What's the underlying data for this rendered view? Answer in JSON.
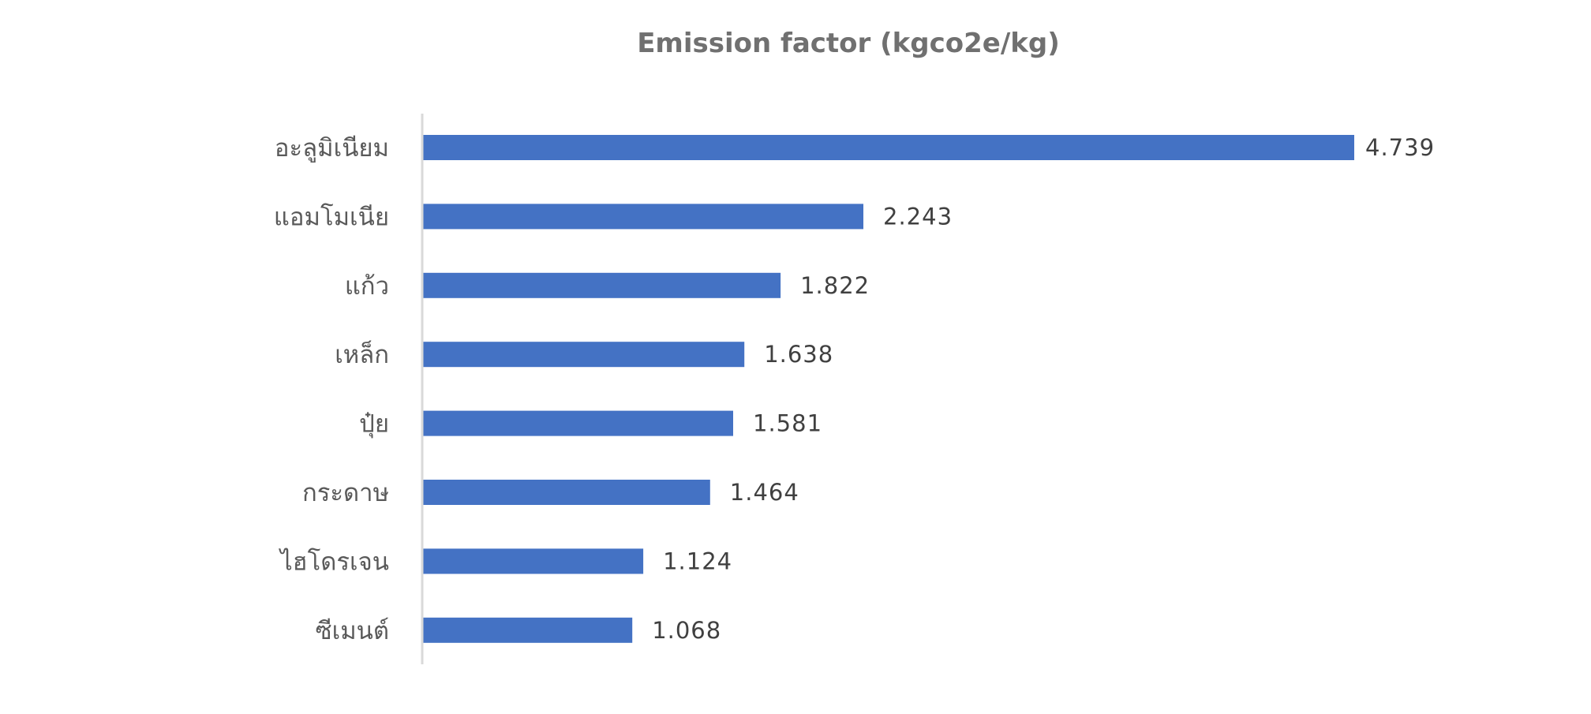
{
  "chart_data": {
    "type": "bar",
    "orientation": "horizontal",
    "title": "Emission factor (kgco2e/kg)",
    "xlabel": "",
    "ylabel": "",
    "categories": [
      "อะลูมิเนียม",
      "แอมโมเนีย",
      "แก้ว",
      "เหล็ก",
      "ปุ๋ย",
      "กระดาษ",
      "ไฮโดรเจน",
      "ซีเมนต์"
    ],
    "values": [
      4.739,
      2.243,
      1.822,
      1.638,
      1.581,
      1.464,
      1.124,
      1.068
    ],
    "value_labels": [
      "4.739",
      "2.243",
      "1.822",
      "1.638",
      "1.581",
      "1.464",
      "1.124",
      "1.068"
    ],
    "xlim": [
      0,
      4.739
    ],
    "bar_color": "#4472C4",
    "axis_color": "#D9D9D9",
    "grid": false,
    "legend": "none",
    "data_labels": true
  }
}
